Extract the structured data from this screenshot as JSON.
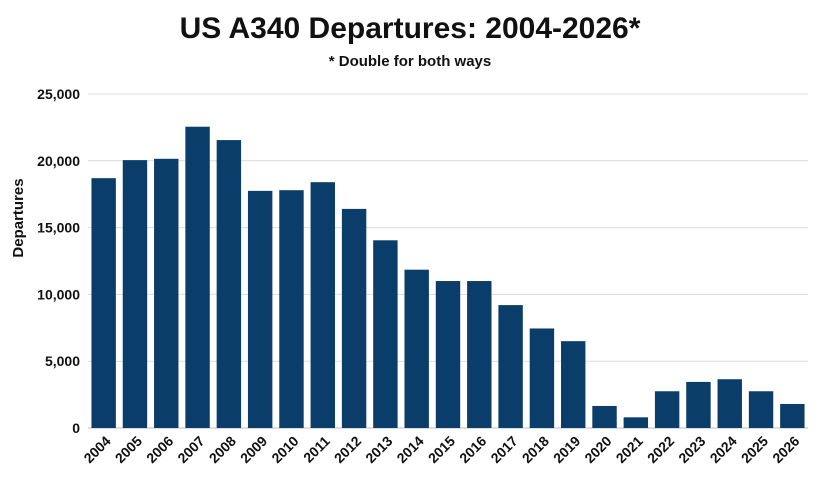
{
  "chart_data": {
    "type": "bar",
    "title": "US A340 Departures: 2004-2026*",
    "subtitle": "* Double for both ways",
    "xlabel": "",
    "ylabel": "Departures",
    "ylim": [
      0,
      25000
    ],
    "yticks": [
      0,
      5000,
      10000,
      15000,
      20000,
      25000
    ],
    "ytick_labels": [
      "0",
      "5,000",
      "10,000",
      "15,000",
      "20,000",
      "25,000"
    ],
    "grid": true,
    "bar_color": "#0b3d6b",
    "categories": [
      "2004",
      "2005",
      "2006",
      "2007",
      "2008",
      "2009",
      "2010",
      "2011",
      "2012",
      "2013",
      "2014",
      "2015",
      "2016",
      "2017",
      "2018",
      "2019",
      "2020",
      "2021",
      "2022",
      "2023",
      "2024",
      "2025",
      "2026"
    ],
    "values": [
      18700,
      20050,
      20150,
      22550,
      21550,
      17750,
      17800,
      18400,
      16400,
      14050,
      11850,
      11000,
      11000,
      9200,
      7450,
      6500,
      1650,
      800,
      2750,
      3450,
      3650,
      2750,
      1800
    ]
  }
}
